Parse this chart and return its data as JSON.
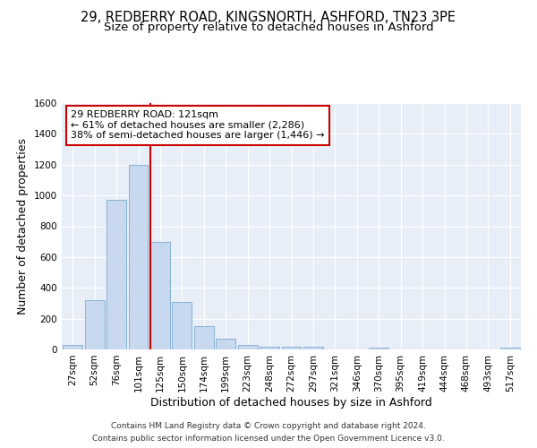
{
  "title_line1": "29, REDBERRY ROAD, KINGSNORTH, ASHFORD, TN23 3PE",
  "title_line2": "Size of property relative to detached houses in Ashford",
  "xlabel": "Distribution of detached houses by size in Ashford",
  "ylabel": "Number of detached properties",
  "footnote1": "Contains HM Land Registry data © Crown copyright and database right 2024.",
  "footnote2": "Contains public sector information licensed under the Open Government Licence v3.0.",
  "bar_labels": [
    "27sqm",
    "52sqm",
    "76sqm",
    "101sqm",
    "125sqm",
    "150sqm",
    "174sqm",
    "199sqm",
    "223sqm",
    "248sqm",
    "272sqm",
    "297sqm",
    "321sqm",
    "346sqm",
    "370sqm",
    "395sqm",
    "419sqm",
    "444sqm",
    "468sqm",
    "493sqm",
    "517sqm"
  ],
  "bar_values": [
    30,
    320,
    970,
    1200,
    700,
    310,
    150,
    70,
    30,
    20,
    15,
    15,
    0,
    0,
    12,
    0,
    0,
    0,
    0,
    0,
    12
  ],
  "bar_color": "#c8d8ee",
  "bar_edgecolor": "#7aaad0",
  "highlight_color": "#cc0000",
  "red_line_bar_index": 4,
  "annotation_text": "29 REDBERRY ROAD: 121sqm\n← 61% of detached houses are smaller (2,286)\n38% of semi-detached houses are larger (1,446) →",
  "annotation_box_facecolor": "#ffffff",
  "annotation_box_edgecolor": "#cc0000",
  "ylim": [
    0,
    1600
  ],
  "background_color": "#e8eef8",
  "grid_color": "#ffffff",
  "title_fontsize": 10.5,
  "subtitle_fontsize": 9.5,
  "axis_label_fontsize": 9,
  "tick_fontsize": 7.5,
  "annotation_fontsize": 8,
  "footnote_fontsize": 6.5
}
